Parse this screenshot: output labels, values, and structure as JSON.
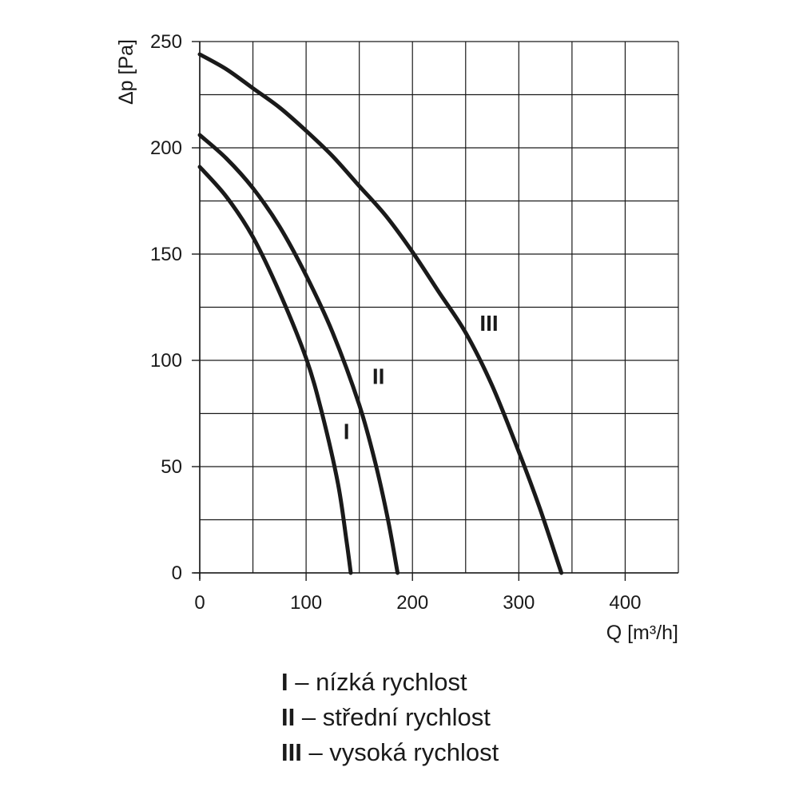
{
  "chart_data": {
    "type": "line",
    "title": "",
    "xlabel": "Q [m³/h]",
    "ylabel": "Δp [Pa]",
    "xlim": [
      0,
      450
    ],
    "ylim": [
      0,
      250
    ],
    "xticks": [
      0,
      100,
      200,
      300,
      400
    ],
    "yticks": [
      0,
      50,
      100,
      150,
      200,
      250
    ],
    "grid": true,
    "grid_step_x": 50,
    "grid_step_y": 25,
    "line_color": "#1a1a1a",
    "series": [
      {
        "name": "I",
        "x": [
          0,
          25,
          50,
          75,
          100,
          115,
          130,
          138,
          142
        ],
        "y": [
          191,
          177,
          158,
          132,
          101,
          75,
          42,
          15,
          0
        ],
        "label_pos": [
          138,
          63
        ]
      },
      {
        "name": "II",
        "x": [
          0,
          25,
          50,
          75,
          100,
          125,
          150,
          165,
          177,
          186
        ],
        "y": [
          206,
          195,
          181,
          163,
          140,
          113,
          79,
          52,
          25,
          0
        ],
        "label_pos": [
          168,
          89
        ]
      },
      {
        "name": "III",
        "x": [
          0,
          25,
          50,
          75,
          100,
          125,
          150,
          175,
          200,
          225,
          250,
          275,
          300,
          320,
          340
        ],
        "y": [
          244,
          237,
          228,
          219,
          208,
          196,
          182,
          168,
          151,
          132,
          113,
          88,
          57,
          30,
          0
        ],
        "label_pos": [
          272,
          114
        ]
      }
    ]
  },
  "legend": [
    {
      "roman": "I",
      "text": " – nízká rychlost"
    },
    {
      "roman": "II",
      "text": " – střední rychlost"
    },
    {
      "roman": "III",
      "text": " – vysoká rychlost"
    }
  ]
}
